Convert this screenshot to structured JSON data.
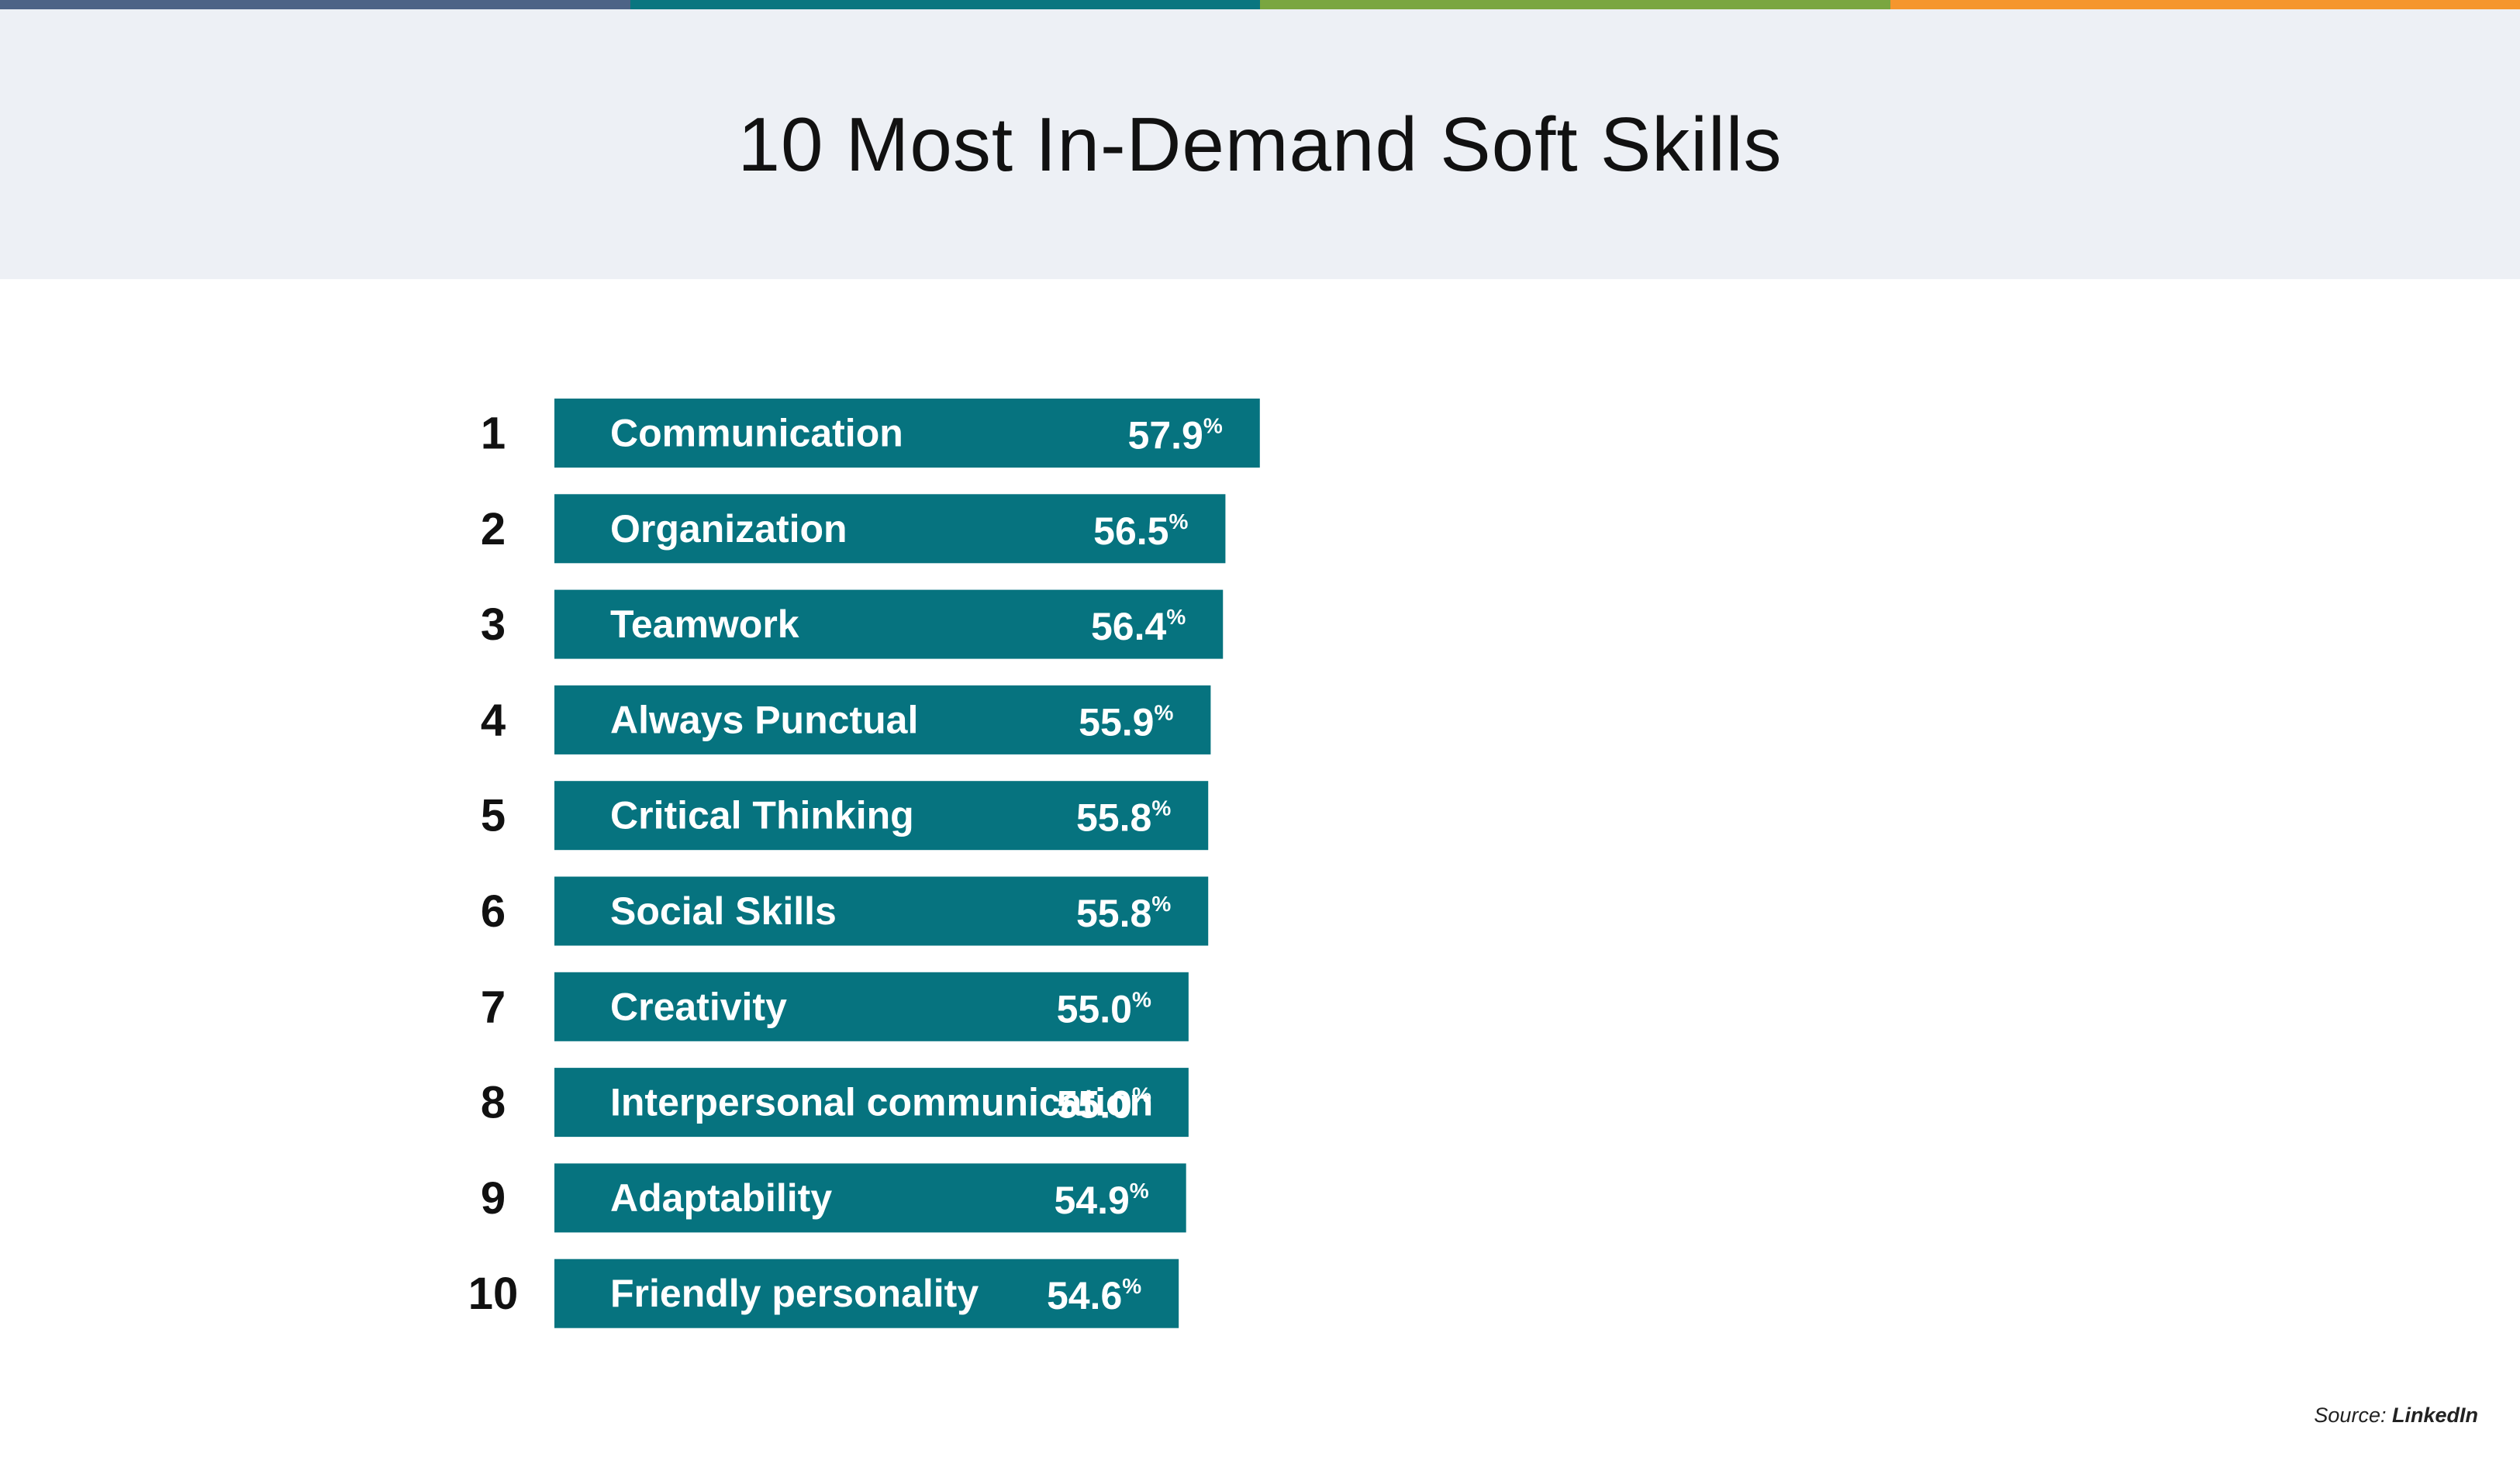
{
  "colors": {
    "top_bar": [
      "#4d6386",
      "#0a7680",
      "#7aa640",
      "#f5962d"
    ],
    "header_bg": "#edf0f5",
    "bar": "#06737f"
  },
  "title": "10 Most In-Demand Soft Skills",
  "source": {
    "label": "Source:",
    "value": "LinkedIn"
  },
  "chart_data": {
    "type": "bar",
    "orientation": "horizontal",
    "title": "10 Most In-Demand Soft Skills",
    "ranks": [
      "1",
      "2",
      "3",
      "4",
      "5",
      "6",
      "7",
      "8",
      "9",
      "10"
    ],
    "categories": [
      "Communication",
      "Organization",
      "Teamwork",
      "Always Punctual",
      "Critical Thinking",
      "Social Skills",
      "Creativity",
      "Interpersonal communication",
      "Adaptability",
      "Friendly personality"
    ],
    "values": [
      57.9,
      56.5,
      56.4,
      55.9,
      55.8,
      55.8,
      55.0,
      55.0,
      54.9,
      54.6
    ],
    "value_labels": [
      "57.9",
      "56.5",
      "56.4",
      "55.9",
      "55.8",
      "55.8",
      "55.0",
      "55.0",
      "54.9",
      "54.6"
    ],
    "unit": "%",
    "xlabel": "",
    "ylabel": "",
    "grid": false,
    "legend": "none"
  }
}
